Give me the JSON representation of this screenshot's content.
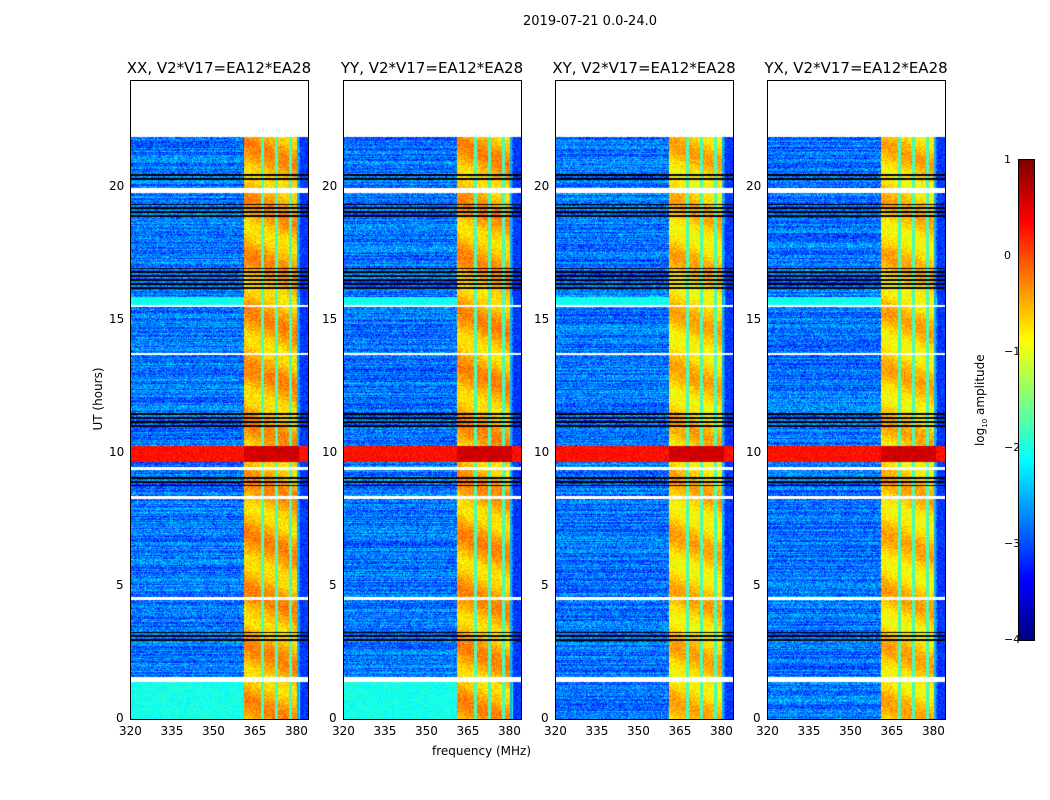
{
  "chart_data": {
    "type": "heatmap",
    "title": "2019-07-21 0.0-24.0",
    "xlabel": "frequency (MHz)",
    "ylabel": "UT (hours)",
    "xlim": [
      320,
      384
    ],
    "ylim": [
      0,
      24
    ],
    "xticks": [
      320,
      335,
      350,
      365,
      380
    ],
    "yticks": [
      0,
      5,
      10,
      15,
      20
    ],
    "colorbar": {
      "label": "log10 amplitude",
      "label_main": "log",
      "label_sub": "10",
      "label_tail": " amplitude",
      "range": [
        -4,
        1
      ],
      "ticks": [
        1,
        0,
        -1,
        -2,
        -3,
        -4
      ],
      "tick_labels": [
        "1",
        "0",
        "−1",
        "−2",
        "−3",
        "−4"
      ],
      "colormap": "jet"
    },
    "data_time_range": [
      0,
      21.9
    ],
    "strong_band_mhz": [
      360.5,
      380.5
    ],
    "band_channel_gaps_mhz": [
      367.5,
      372.5,
      377.5
    ],
    "background_level_log10": -2.8,
    "band_level_log10": -0.6,
    "flare_time_hours": [
      9.7,
      10.3
    ],
    "flagged_white_hours": [
      [
        1.4,
        1.6
      ],
      [
        4.5,
        4.6
      ],
      [
        8.3,
        8.4
      ],
      [
        9.4,
        9.5
      ],
      [
        13.7,
        13.8
      ],
      [
        15.5,
        15.6
      ],
      [
        19.8,
        20.0
      ]
    ],
    "flagged_black_hours": [
      [
        2.9,
        3.3
      ],
      [
        8.8,
        9.2
      ],
      [
        11.0,
        11.6
      ],
      [
        16.2,
        17.0
      ],
      [
        18.9,
        19.4
      ],
      [
        20.3,
        20.6
      ]
    ],
    "panels": [
      {
        "title": "XX, V2*V17=EA12*EA28",
        "low_band_boost": true
      },
      {
        "title": "YY, V2*V17=EA12*EA28",
        "low_band_boost": true
      },
      {
        "title": "XY, V2*V17=EA12*EA28",
        "low_band_boost": false
      },
      {
        "title": "YX, V2*V17=EA12*EA28",
        "low_band_boost": false
      }
    ]
  }
}
